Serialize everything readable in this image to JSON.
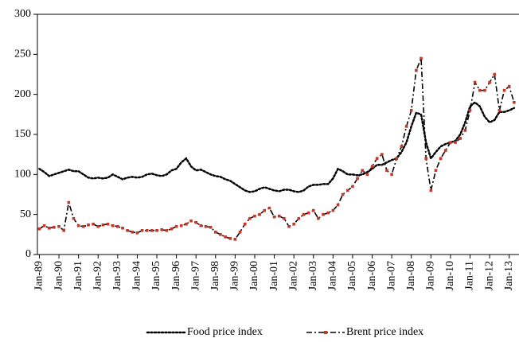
{
  "chart_data": {
    "type": "line",
    "x": [
      1989,
      1989.25,
      1989.5,
      1989.75,
      1990,
      1990.25,
      1990.5,
      1990.75,
      1991,
      1991.25,
      1991.5,
      1991.75,
      1992,
      1992.25,
      1992.5,
      1992.75,
      1993,
      1993.25,
      1993.5,
      1993.75,
      1994,
      1994.25,
      1994.5,
      1994.75,
      1995,
      1995.25,
      1995.5,
      1995.75,
      1996,
      1996.25,
      1996.5,
      1996.75,
      1997,
      1997.25,
      1997.5,
      1997.75,
      1998,
      1998.25,
      1998.5,
      1998.75,
      1999,
      1999.25,
      1999.5,
      1999.75,
      2000,
      2000.25,
      2000.5,
      2000.75,
      2001,
      2001.25,
      2001.5,
      2001.75,
      2002,
      2002.25,
      2002.5,
      2002.75,
      2003,
      2003.25,
      2003.5,
      2003.75,
      2004,
      2004.25,
      2004.5,
      2004.75,
      2005,
      2005.25,
      2005.5,
      2005.75,
      2006,
      2006.25,
      2006.5,
      2006.75,
      2007,
      2007.25,
      2007.5,
      2007.75,
      2008,
      2008.25,
      2008.5,
      2008.75,
      2009,
      2009.25,
      2009.5,
      2009.75,
      2010,
      2010.25,
      2010.5,
      2010.75,
      2011,
      2011.25,
      2011.5,
      2011.75,
      2012,
      2012.25,
      2012.5,
      2012.75,
      2013,
      2013.25
    ],
    "series": [
      {
        "name": "Food price index",
        "color": "#000000",
        "style": "dotted",
        "values": [
          107,
          103,
          98,
          100,
          102,
          104,
          106,
          104,
          104,
          100,
          96,
          95,
          96,
          95,
          96,
          100,
          97,
          94,
          96,
          97,
          96,
          97,
          100,
          101,
          99,
          98,
          100,
          105,
          107,
          115,
          120,
          110,
          105,
          106,
          103,
          100,
          98,
          97,
          94,
          92,
          88,
          84,
          80,
          78,
          79,
          82,
          84,
          82,
          80,
          79,
          81,
          81,
          79,
          78,
          80,
          85,
          87,
          87,
          88,
          88,
          95,
          107,
          104,
          100,
          100,
          99,
          100,
          103,
          107,
          112,
          112,
          115,
          118,
          120,
          128,
          140,
          160,
          177,
          175,
          140,
          120,
          128,
          135,
          138,
          140,
          142,
          150,
          165,
          185,
          190,
          185,
          172,
          165,
          168,
          178,
          178,
          180,
          183
        ]
      },
      {
        "name": "Brent price index",
        "color": "#000000",
        "style": "dashdot",
        "marker_color": "#c0392b",
        "values": [
          32,
          36,
          33,
          34,
          35,
          30,
          65,
          45,
          36,
          35,
          37,
          38,
          35,
          37,
          38,
          36,
          35,
          33,
          30,
          28,
          27,
          30,
          30,
          30,
          30,
          31,
          30,
          32,
          35,
          36,
          38,
          42,
          40,
          36,
          35,
          34,
          28,
          25,
          22,
          20,
          19,
          28,
          38,
          45,
          48,
          50,
          55,
          58,
          47,
          48,
          45,
          35,
          38,
          45,
          50,
          52,
          55,
          45,
          50,
          52,
          55,
          62,
          75,
          80,
          85,
          95,
          105,
          100,
          110,
          120,
          125,
          105,
          100,
          120,
          135,
          160,
          180,
          230,
          245,
          120,
          80,
          105,
          120,
          130,
          140,
          140,
          145,
          155,
          180,
          215,
          205,
          205,
          215,
          225,
          180,
          205,
          210,
          190
        ]
      }
    ],
    "xlim": [
      1988.9,
      2013.5
    ],
    "xticks": [
      {
        "value": 1989,
        "label": "Jan-89"
      },
      {
        "value": 1990,
        "label": "Jan-90"
      },
      {
        "value": 1991,
        "label": "Jan-91"
      },
      {
        "value": 1992,
        "label": "Jan-92"
      },
      {
        "value": 1993,
        "label": "Jan-93"
      },
      {
        "value": 1994,
        "label": "Jan-94"
      },
      {
        "value": 1995,
        "label": "Jan-95"
      },
      {
        "value": 1996,
        "label": "Jan-96"
      },
      {
        "value": 1997,
        "label": "Jan-97"
      },
      {
        "value": 1998,
        "label": "Jan-98"
      },
      {
        "value": 1999,
        "label": "Jan-99"
      },
      {
        "value": 2000,
        "label": "Jan-00"
      },
      {
        "value": 2001,
        "label": "Jan-01"
      },
      {
        "value": 2002,
        "label": "Jan-02"
      },
      {
        "value": 2003,
        "label": "Jan-03"
      },
      {
        "value": 2004,
        "label": "Jan-04"
      },
      {
        "value": 2005,
        "label": "Jan-05"
      },
      {
        "value": 2006,
        "label": "Jan-06"
      },
      {
        "value": 2007,
        "label": "Jan-07"
      },
      {
        "value": 2008,
        "label": "Jan-08"
      },
      {
        "value": 2009,
        "label": "Jan-09"
      },
      {
        "value": 2010,
        "label": "Jan-10"
      },
      {
        "value": 2011,
        "label": "Jan-11"
      },
      {
        "value": 2012,
        "label": "Jan-12"
      },
      {
        "value": 2013,
        "label": "Jan-13"
      }
    ],
    "ylim": [
      0,
      300
    ],
    "yticks": [
      0,
      50,
      100,
      150,
      200,
      250,
      300
    ],
    "legend": "bottom"
  }
}
